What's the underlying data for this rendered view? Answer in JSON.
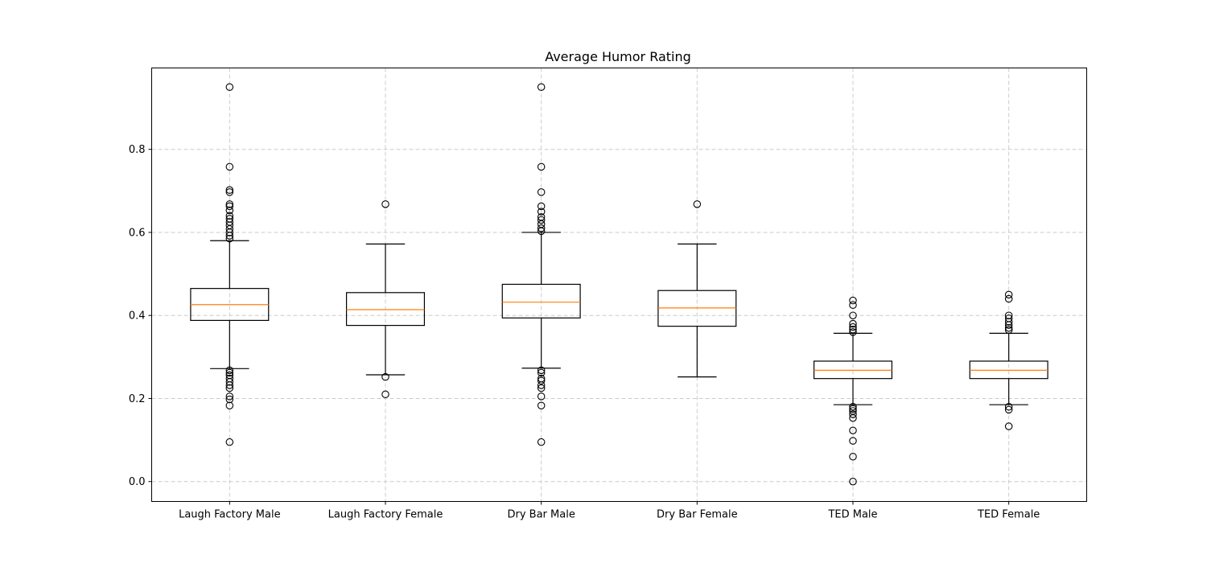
{
  "chart_data": {
    "type": "boxplot",
    "title": "Average Humor Rating",
    "xlabel": "",
    "ylabel": "",
    "ylim": [
      -0.048,
      0.996
    ],
    "yticks": [
      {
        "value": 0.0,
        "label": "0.0"
      },
      {
        "value": 0.2,
        "label": "0.2"
      },
      {
        "value": 0.4,
        "label": "0.4"
      },
      {
        "value": 0.6,
        "label": "0.6"
      },
      {
        "value": 0.8,
        "label": "0.8"
      }
    ],
    "grid": true,
    "median_color": "#ff7f0e",
    "box_color": "#000000",
    "grid_color": "#cccccc",
    "categories": [
      "Laugh Factory Male",
      "Laugh Factory Female",
      "Dry Bar Male",
      "Dry Bar Female",
      "TED Male",
      "TED Female"
    ],
    "boxes": [
      {
        "category": "Laugh Factory Male",
        "whisker_low": 0.272,
        "q1": 0.388,
        "median": 0.426,
        "q3": 0.465,
        "whisker_high": 0.58,
        "outliers": [
          0.95,
          0.758,
          0.702,
          0.697,
          0.668,
          0.663,
          0.653,
          0.64,
          0.633,
          0.625,
          0.617,
          0.608,
          0.6,
          0.592,
          0.585,
          0.268,
          0.262,
          0.256,
          0.248,
          0.24,
          0.232,
          0.225,
          0.205,
          0.198,
          0.183,
          0.095
        ]
      },
      {
        "category": "Laugh Factory Female",
        "whisker_low": 0.257,
        "q1": 0.376,
        "median": 0.414,
        "q3": 0.455,
        "whisker_high": 0.572,
        "outliers": [
          0.668,
          0.252,
          0.21
        ]
      },
      {
        "category": "Dry Bar Male",
        "whisker_low": 0.273,
        "q1": 0.394,
        "median": 0.432,
        "q3": 0.475,
        "whisker_high": 0.6,
        "outliers": [
          0.95,
          0.758,
          0.697,
          0.663,
          0.65,
          0.637,
          0.63,
          0.62,
          0.61,
          0.603,
          0.268,
          0.262,
          0.248,
          0.243,
          0.232,
          0.225,
          0.205,
          0.183,
          0.095
        ]
      },
      {
        "category": "Dry Bar Female",
        "whisker_low": 0.252,
        "q1": 0.374,
        "median": 0.418,
        "q3": 0.46,
        "whisker_high": 0.572,
        "outliers": [
          0.668
        ]
      },
      {
        "category": "TED Male",
        "whisker_low": 0.185,
        "q1": 0.248,
        "median": 0.268,
        "q3": 0.29,
        "whisker_high": 0.357,
        "outliers": [
          0.436,
          0.425,
          0.4,
          0.38,
          0.372,
          0.366,
          0.36,
          0.18,
          0.175,
          0.17,
          0.162,
          0.153,
          0.123,
          0.098,
          0.06,
          0.0
        ]
      },
      {
        "category": "TED Female",
        "whisker_low": 0.185,
        "q1": 0.248,
        "median": 0.268,
        "q3": 0.29,
        "whisker_high": 0.357,
        "outliers": [
          0.45,
          0.44,
          0.4,
          0.393,
          0.385,
          0.377,
          0.37,
          0.365,
          0.18,
          0.173,
          0.133
        ]
      }
    ]
  }
}
